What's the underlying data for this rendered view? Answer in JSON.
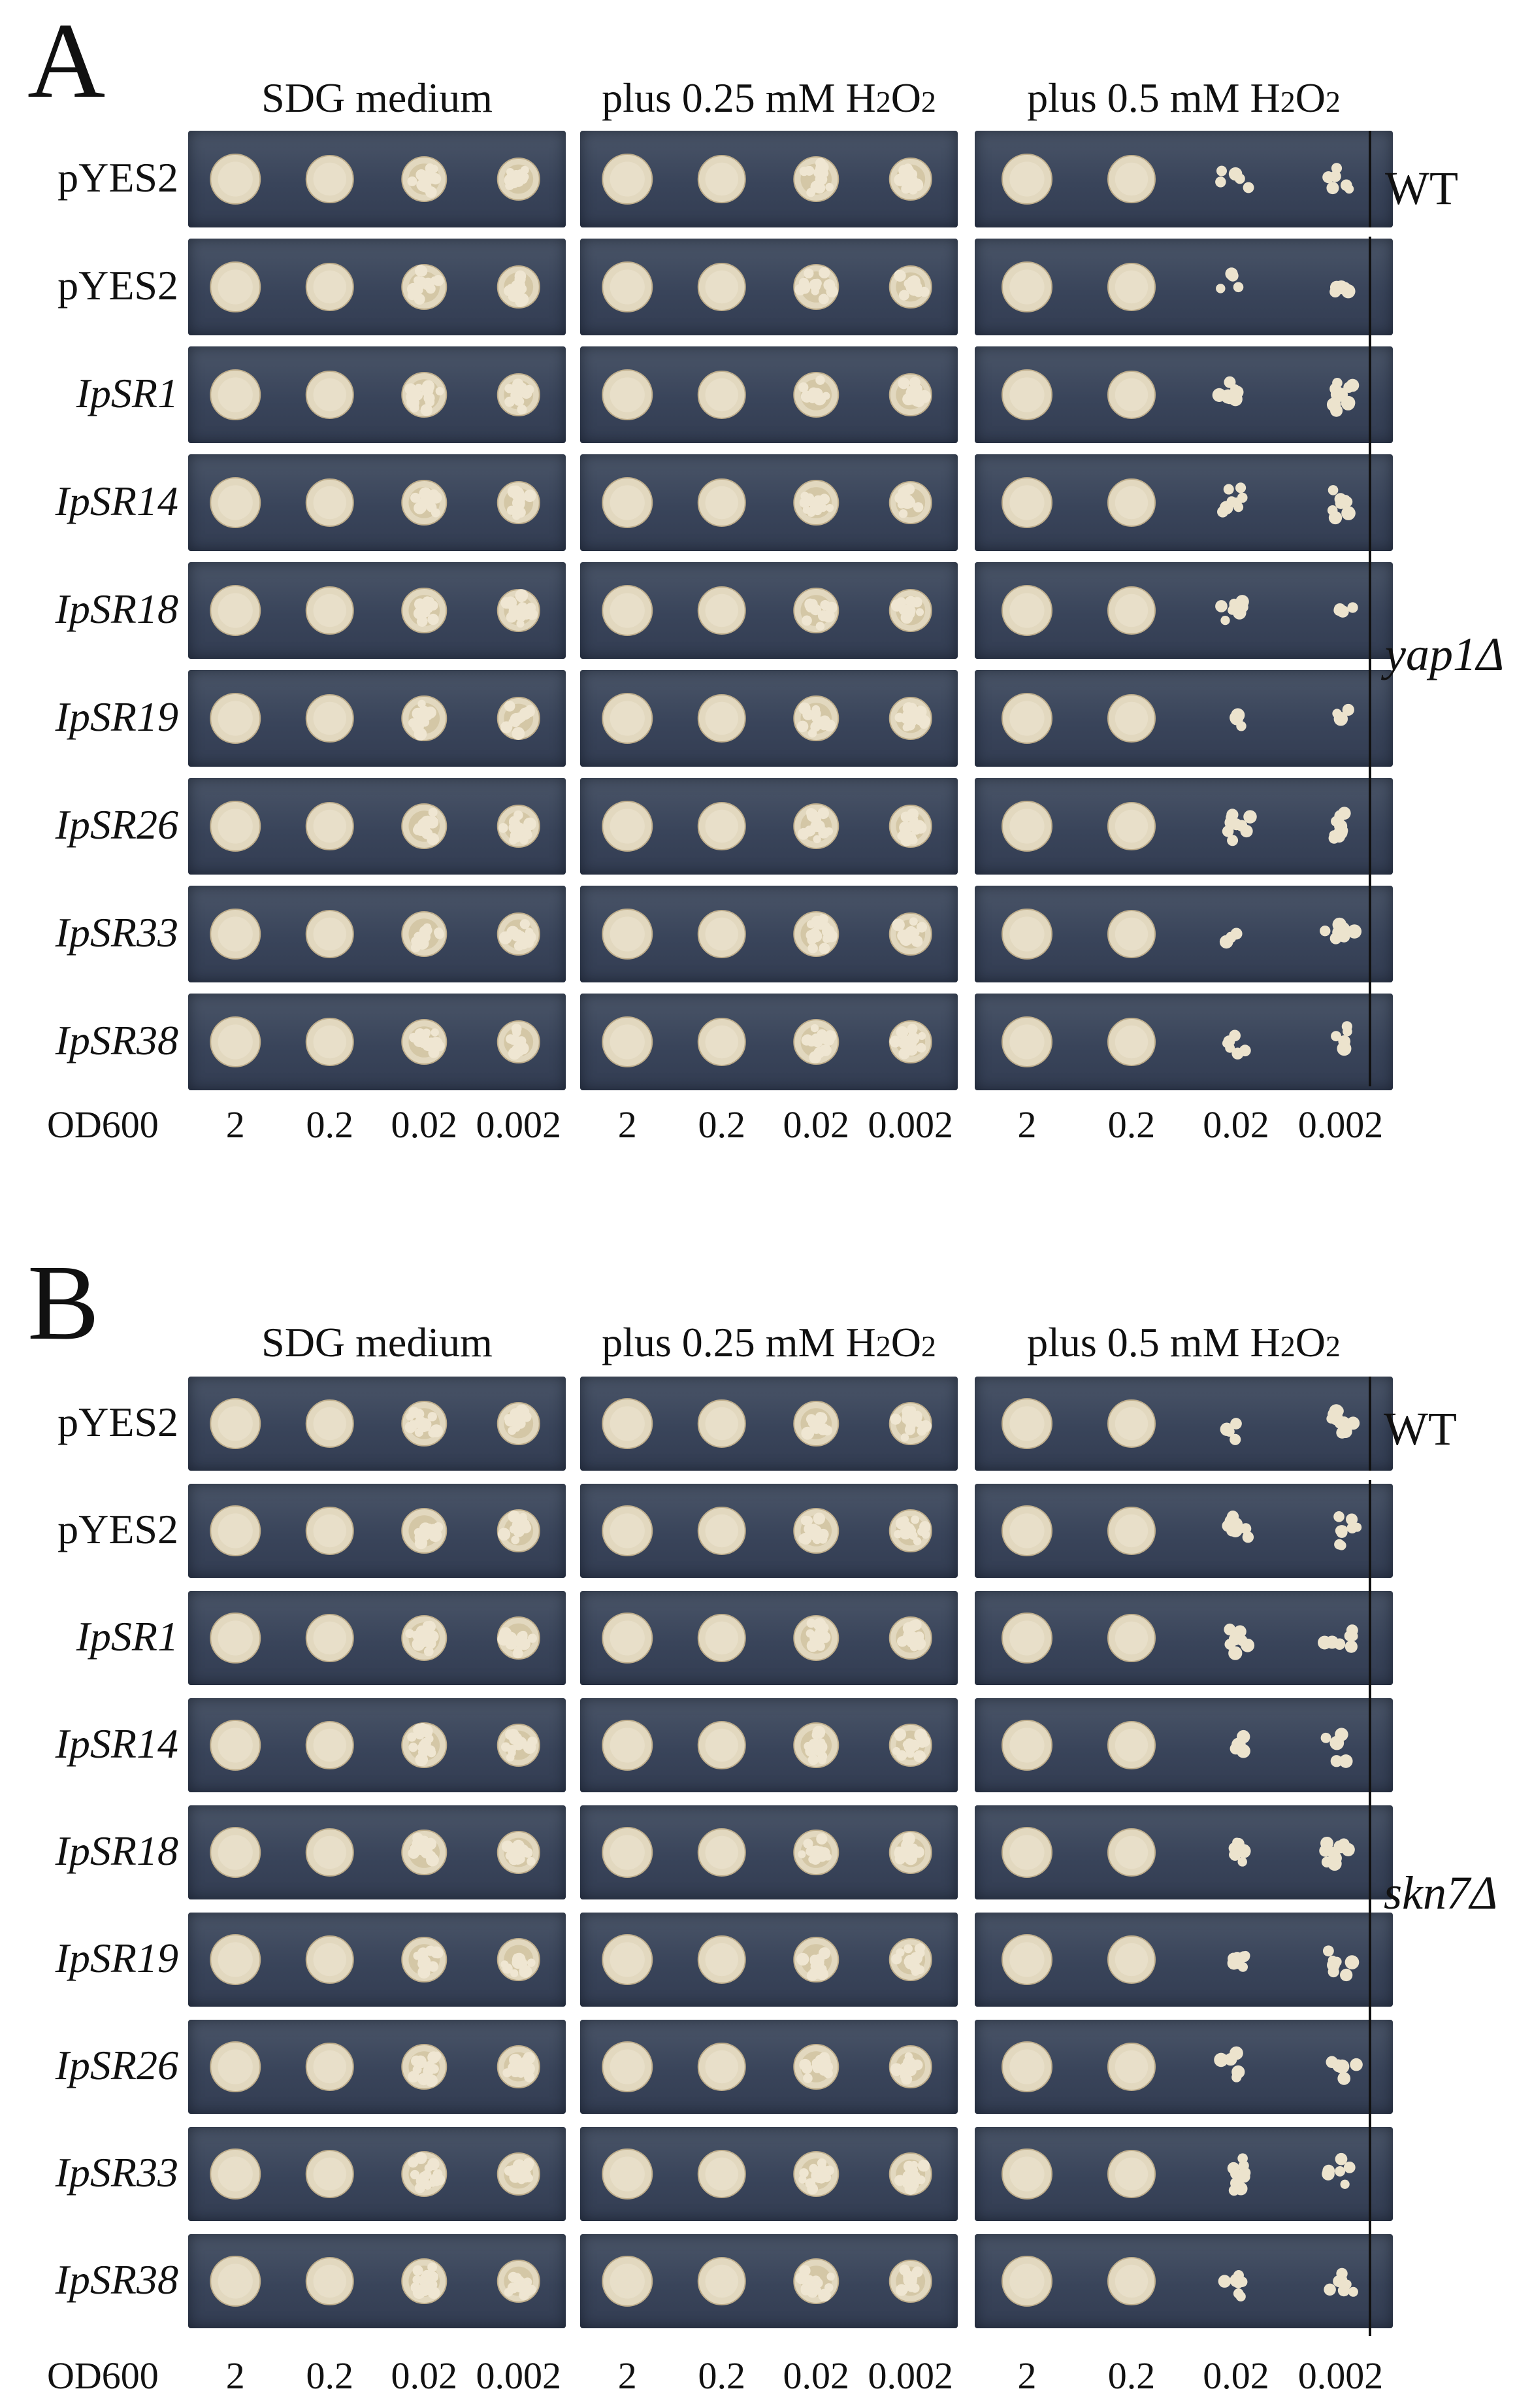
{
  "panels": [
    {
      "letter": "A",
      "columns": [
        {
          "label": "SDG medium"
        },
        {
          "label": "plus 0.25 mM H2O2"
        },
        {
          "label": "plus 0.5 mM H2O2"
        }
      ],
      "rows": [
        {
          "label": "pYES2",
          "italic": false
        },
        {
          "label": "pYES2",
          "italic": false
        },
        {
          "label": "IpSR1",
          "italic": true
        },
        {
          "label": "IpSR14",
          "italic": true
        },
        {
          "label": "IpSR18",
          "italic": true
        },
        {
          "label": "IpSR19",
          "italic": true
        },
        {
          "label": "IpSR26",
          "italic": true
        },
        {
          "label": "IpSR33",
          "italic": true
        },
        {
          "label": "IpSR38",
          "italic": true
        }
      ],
      "od_label": "OD600",
      "dilutions": [
        "2",
        "0.2",
        "0.02",
        "0.002"
      ],
      "strain_groups": [
        {
          "label": "WT",
          "italic": false
        },
        {
          "label": "yap1Δ",
          "italic": true
        }
      ]
    },
    {
      "letter": "B",
      "columns": [
        {
          "label": "SDG medium"
        },
        {
          "label": "plus 0.25 mM H2O2"
        },
        {
          "label": "plus 0.5 mM H2O2"
        }
      ],
      "rows": [
        {
          "label": "pYES2",
          "italic": false
        },
        {
          "label": "pYES2",
          "italic": false
        },
        {
          "label": "IpSR1",
          "italic": true
        },
        {
          "label": "IpSR14",
          "italic": true
        },
        {
          "label": "IpSR18",
          "italic": true
        },
        {
          "label": "IpSR19",
          "italic": true
        },
        {
          "label": "IpSR26",
          "italic": true
        },
        {
          "label": "IpSR33",
          "italic": true
        },
        {
          "label": "IpSR38",
          "italic": true
        }
      ],
      "od_label": "OD600",
      "dilutions": [
        "2",
        "0.2",
        "0.02",
        "0.002"
      ],
      "strain_groups": [
        {
          "label": "WT",
          "italic": false
        },
        {
          "label": "skn7Δ",
          "italic": true
        }
      ]
    }
  ]
}
